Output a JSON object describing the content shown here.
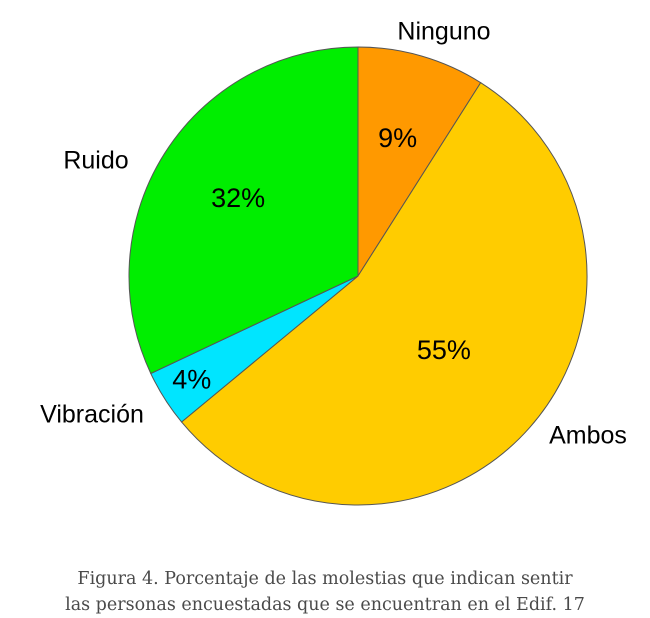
{
  "chart_data": {
    "type": "pie",
    "title": "",
    "start": "12 o'clock, clockwise",
    "slices": [
      {
        "label": "Ninguno",
        "value": 9,
        "value_label": "9%",
        "color": "#FF9900"
      },
      {
        "label": "Ambos",
        "value": 55,
        "value_label": "55%",
        "color": "#FFCC00"
      },
      {
        "label": "Vibración",
        "value": 4,
        "value_label": "4%",
        "color": "#00E5FF"
      },
      {
        "label": "Ruido",
        "value": 32,
        "value_label": "32%",
        "color": "#00EE00"
      }
    ],
    "slice_outline_color": "#555555"
  },
  "caption": {
    "line1": "Figura 4. Porcentaje de las molestias que indican sentir",
    "line2": "las personas encuestadas que se encuentran en el Edif. 17"
  }
}
